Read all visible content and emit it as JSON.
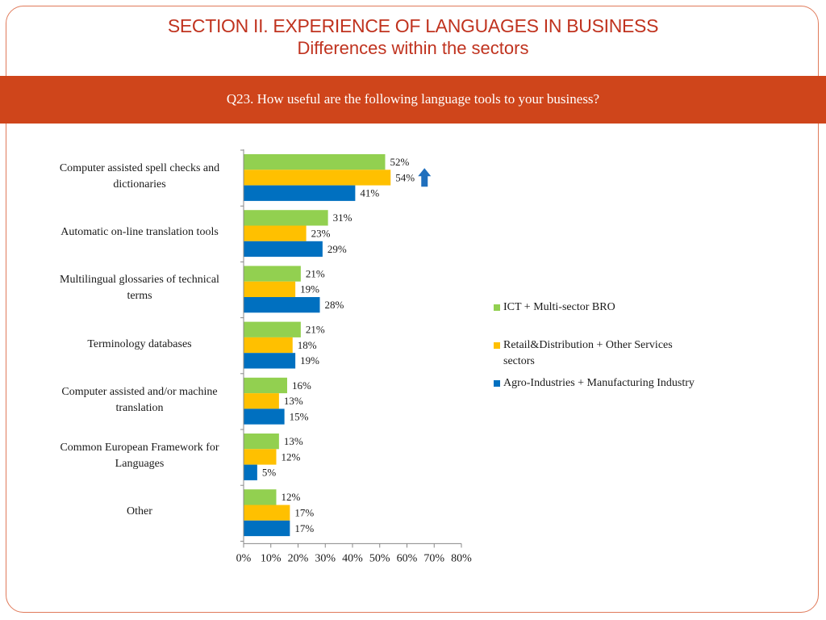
{
  "slide": {
    "title": "SECTION II. EXPERIENCE OF LANGUAGES IN BUSINESS",
    "subtitle": "Differences within the sectors",
    "question": "Q23. How useful are the following language tools to your business?"
  },
  "colors": {
    "accent_red": "#c0331f",
    "band": "#cf451b",
    "arrow": "#1f6fbd"
  },
  "chart_data": {
    "type": "bar",
    "orientation": "horizontal",
    "categories": [
      "Computer assisted spell checks and dictionaries",
      "Automatic on-line translation tools",
      "Multilingual glossaries of technical terms",
      "Terminology databases",
      "Computer assisted and/or machine translation",
      "Common European Framework for Languages",
      "Other"
    ],
    "series": [
      {
        "name": "ICT + Multi-sector BRO",
        "color": "#92d050",
        "values": [
          52,
          31,
          21,
          21,
          16,
          13,
          12
        ]
      },
      {
        "name": "Retail&Distribution + Other Services sectors",
        "color": "#ffc000",
        "values": [
          54,
          23,
          19,
          18,
          13,
          12,
          17
        ]
      },
      {
        "name": "Agro-Industries + Manufacturing Industry",
        "color": "#0070c0",
        "values": [
          41,
          29,
          28,
          19,
          15,
          5,
          17
        ]
      }
    ],
    "xlim": [
      0,
      80
    ],
    "xticks": [
      "0%",
      "10%",
      "20%",
      "30%",
      "40%",
      "50%",
      "60%",
      "70%",
      "80%"
    ],
    "value_suffix": "%",
    "grid": false,
    "legend_position": "right",
    "annotation": {
      "type": "up-arrow-icon",
      "category_index": 0,
      "series_index": 1
    }
  }
}
